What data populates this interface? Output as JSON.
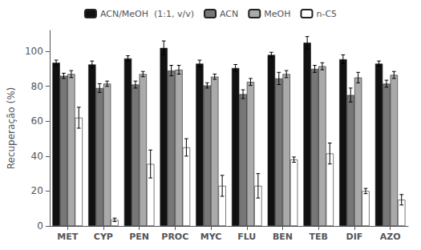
{
  "chart_data": {
    "type": "bar",
    "categories": [
      "MET",
      "CYP",
      "PEN",
      "PROC",
      "MYC",
      "FLU",
      "BEN",
      "TEB",
      "DIF",
      "AZO"
    ],
    "series": [
      {
        "name": "ACN/MeOH  (1:1, v/v)",
        "color": "#111111",
        "values": [
          93.5,
          92.5,
          96.0,
          102.0,
          93.0,
          90.5,
          98.0,
          105.0,
          95.5,
          93.0
        ],
        "errors": [
          1.5,
          2.0,
          1.5,
          4.0,
          2.0,
          2.0,
          1.5,
          3.5,
          2.5,
          1.5
        ]
      },
      {
        "name": "ACN",
        "color": "#777777",
        "values": [
          86.0,
          79.0,
          81.0,
          89.0,
          80.5,
          75.5,
          84.5,
          90.0,
          75.0,
          81.5
        ],
        "errors": [
          1.5,
          2.5,
          2.0,
          3.0,
          1.5,
          2.5,
          3.5,
          2.0,
          4.0,
          2.0
        ]
      },
      {
        "name": "MeOH",
        "color": "#aaaaaa",
        "values": [
          87.0,
          81.5,
          87.0,
          89.5,
          85.5,
          82.5,
          87.0,
          91.5,
          85.0,
          86.5
        ],
        "errors": [
          2.0,
          1.5,
          1.5,
          2.5,
          1.5,
          2.0,
          2.0,
          2.0,
          3.0,
          2.0
        ]
      },
      {
        "name": "n-C5",
        "color": "#ffffff",
        "values": [
          62.0,
          3.5,
          35.5,
          45.0,
          23.0,
          23.0,
          38.0,
          41.5,
          20.0,
          15.0
        ],
        "errors": [
          6.0,
          1.0,
          8.0,
          5.0,
          6.0,
          7.0,
          1.5,
          6.0,
          1.5,
          3.0
        ]
      }
    ],
    "ylabel": "Recuperação (%)",
    "ylim": [
      0,
      112
    ],
    "yticks": [
      0,
      20,
      40,
      60,
      80,
      100
    ],
    "grid": false,
    "legend": "top"
  }
}
